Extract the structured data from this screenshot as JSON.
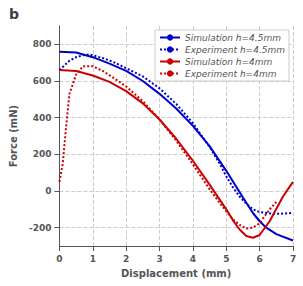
{
  "chart_data": {
    "type": "line",
    "title": "b",
    "xlabel": "Displacement (mm)",
    "ylabel": "Force (mN)",
    "xlim": [
      0,
      7
    ],
    "ylim": [
      -300,
      900
    ],
    "xticks": [
      0,
      1,
      2,
      3,
      4,
      5,
      6,
      7
    ],
    "yticks": [
      -200,
      0,
      200,
      400,
      600,
      800
    ],
    "grid": true,
    "legend": "upper right",
    "series": [
      {
        "name": "Simulation h=4.5mm",
        "color": "#0000cc",
        "line_style": "solid",
        "x": [
          0.0,
          0.5,
          1.0,
          1.5,
          2.0,
          2.5,
          3.0,
          3.5,
          4.0,
          4.5,
          5.0,
          5.5,
          5.8,
          6.0,
          6.2,
          6.5,
          7.0
        ],
        "values": [
          760,
          755,
          730,
          695,
          655,
          600,
          530,
          450,
          355,
          245,
          110,
          -35,
          -120,
          -165,
          -200,
          -235,
          -270
        ]
      },
      {
        "name": "Experiment h=4.5mm",
        "color": "#0000cc",
        "line_style": "dotted",
        "x": [
          0.0,
          0.3,
          0.5,
          0.7,
          0.9,
          1.0,
          1.3,
          1.6,
          2.0,
          2.5,
          3.0,
          3.5,
          4.0,
          4.5,
          4.8,
          5.0,
          5.2,
          5.4,
          5.6,
          5.8,
          6.0,
          6.2,
          6.5,
          7.0
        ],
        "values": [
          660,
          710,
          730,
          740,
          745,
          740,
          725,
          705,
          670,
          625,
          560,
          475,
          370,
          240,
          150,
          80,
          20,
          -30,
          -70,
          -100,
          -115,
          -120,
          -125,
          -120
        ]
      },
      {
        "name": "Simulation h=4mm",
        "color": "#cc0000",
        "line_style": "solid",
        "x": [
          0.0,
          0.5,
          1.0,
          1.5,
          2.0,
          2.5,
          3.0,
          3.5,
          4.0,
          4.5,
          5.0,
          5.2,
          5.4,
          5.6,
          5.8,
          6.0,
          6.3,
          6.7,
          7.0
        ],
        "values": [
          660,
          655,
          630,
          595,
          545,
          478,
          390,
          285,
          165,
          35,
          -100,
          -160,
          -210,
          -245,
          -255,
          -240,
          -165,
          -30,
          50
        ]
      },
      {
        "name": "Experiment h=4mm",
        "color": "#cc0000",
        "line_style": "dotted",
        "x": [
          0.0,
          0.1,
          0.2,
          0.3,
          0.5,
          0.7,
          1.0,
          1.3,
          1.6,
          2.0,
          2.5,
          3.0,
          3.5,
          4.0,
          4.5,
          4.8,
          5.0,
          5.2,
          5.4,
          5.6,
          5.8,
          6.0,
          6.3,
          6.5
        ],
        "values": [
          50,
          150,
          350,
          530,
          635,
          680,
          680,
          655,
          620,
          570,
          490,
          390,
          275,
          145,
          10,
          -65,
          -110,
          -155,
          -185,
          -205,
          -200,
          -175,
          -100,
          -60
        ]
      }
    ]
  }
}
